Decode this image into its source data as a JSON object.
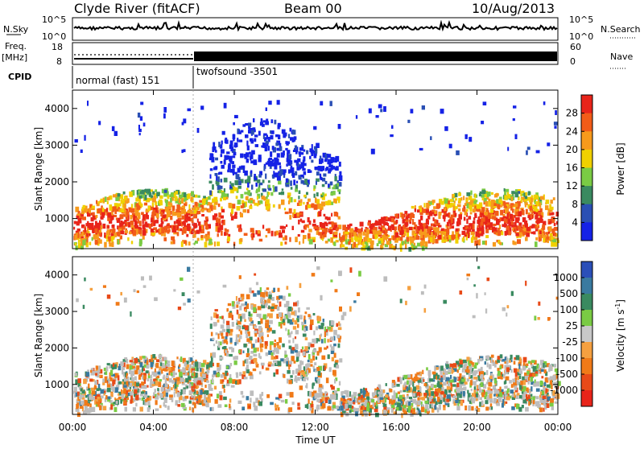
{
  "header": {
    "station": "Clyde River (fitACF)",
    "beam": "Beam 00",
    "date": "10/Aug/2013"
  },
  "noise_panel": {
    "left_label": "N.Sky",
    "right_label": "N.Search",
    "left_ticks": [
      "10^5",
      "10^0"
    ],
    "right_ticks": [
      "10^5",
      "10^0"
    ]
  },
  "freq_panel": {
    "left_label_top": "Freq.",
    "left_label_unit": "[MHz]",
    "right_label": "Nave",
    "left_ticks": [
      "18",
      "8"
    ],
    "right_ticks": [
      "60",
      "0"
    ]
  },
  "cpid": {
    "label": "CPID",
    "programs": [
      {
        "name": "normal (fast) 151",
        "start": "00:00",
        "end": "06:00"
      },
      {
        "name": "twofsound -3501",
        "start": "06:00",
        "end": "24:00"
      }
    ]
  },
  "chart_data": [
    {
      "type": "heatmap",
      "title": "Power",
      "ylabel": "Slant Range [km]",
      "xlabel": "Time UT",
      "ylim": [
        180,
        4500
      ],
      "yticks": [
        1000,
        2000,
        3000,
        4000
      ],
      "xticks": [
        "00:00",
        "04:00",
        "08:00",
        "12:00",
        "16:00",
        "20:00",
        "00:00"
      ],
      "colorbar_label": "Power [dB]",
      "colorbar_ticks": [
        "4",
        "8",
        "12",
        "16",
        "20",
        "24",
        "28"
      ],
      "colorbar_colors": [
        "#1522e6",
        "#2a4fb4",
        "#3a8a60",
        "#7acb44",
        "#f0d000",
        "#f79a1c",
        "#f25c18",
        "#e8241a"
      ]
    },
    {
      "type": "heatmap",
      "title": "Velocity",
      "ylabel": "Slant Range [km]",
      "xlabel": "Time UT",
      "ylim": [
        180,
        4500
      ],
      "yticks": [
        1000,
        2000,
        3000,
        4000
      ],
      "xticks": [
        "00:00",
        "04:00",
        "08:00",
        "12:00",
        "16:00",
        "20:00",
        "00:00"
      ],
      "colorbar_label": "Velocity [m s^-1]",
      "colorbar_ticks": [
        "1000",
        "500",
        "100",
        "25",
        "-25",
        "-100",
        "-500",
        "-1000"
      ],
      "colorbar_colors": [
        "#2b4fb8",
        "#3a7aa0",
        "#3a8a60",
        "#7acb44",
        "#c8c8c8",
        "#f5a040",
        "#f07a18",
        "#e84a18",
        "#e8241a"
      ]
    }
  ],
  "x_axis_title": "Time UT",
  "colors": {
    "ground_scatter": "#bdbdbd"
  }
}
